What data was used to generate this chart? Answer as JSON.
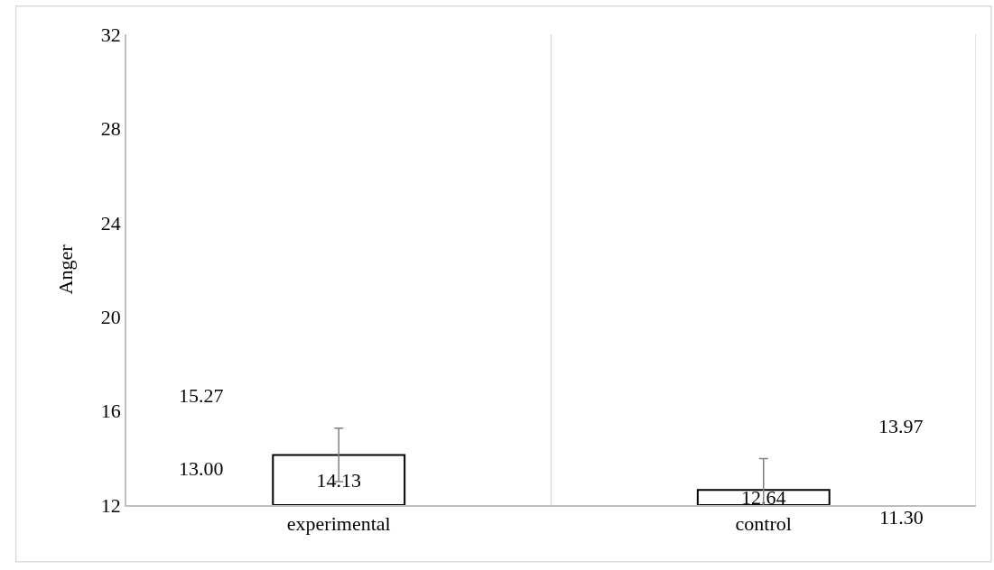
{
  "chart_data": {
    "type": "bar",
    "ylabel": "Anger",
    "categories": [
      "experimental",
      "control"
    ],
    "values": [
      14.13,
      12.64
    ],
    "value_labels": [
      "14.13",
      "12.64"
    ],
    "errors": [
      [
        13.0,
        15.27
      ],
      [
        11.3,
        13.97
      ]
    ],
    "color": "#ffffff",
    "ylim": [
      12,
      32
    ],
    "yticks": [
      12,
      16,
      20,
      24,
      28,
      32
    ],
    "grid": "x",
    "annotations": [
      "15.27",
      "13.00",
      "13.97",
      "11.30"
    ]
  }
}
